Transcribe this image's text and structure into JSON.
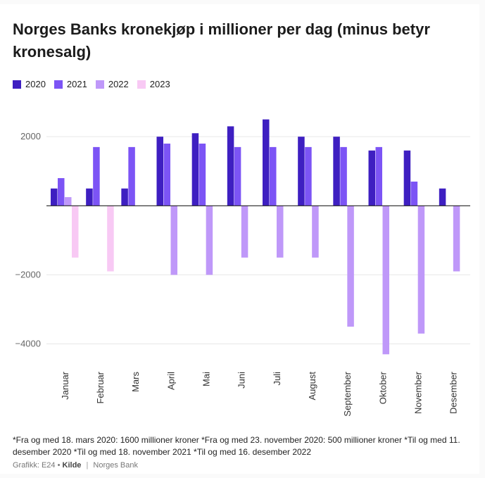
{
  "chart_data": {
    "type": "bar",
    "title": "Norges Banks kronekjøp i millioner per dag (minus betyr kronesalg)",
    "categories": [
      "Januar",
      "Februar",
      "Mars",
      "April",
      "Mai",
      "Juni",
      "Juli",
      "August",
      "September",
      "Oktober",
      "November",
      "Desember"
    ],
    "series": [
      {
        "name": "2020",
        "color": "#3e1fc1",
        "values": [
          500,
          500,
          500,
          2000,
          2100,
          2300,
          2500,
          2000,
          2000,
          1600,
          1600,
          500
        ]
      },
      {
        "name": "2021",
        "color": "#7c54f5",
        "values": [
          800,
          1700,
          1700,
          1800,
          1800,
          1700,
          1700,
          1700,
          1700,
          1700,
          700,
          null
        ]
      },
      {
        "name": "2022",
        "color": "#bf98f9",
        "values": [
          250,
          null,
          null,
          -2000,
          -2000,
          -1500,
          -1500,
          -1500,
          -3500,
          -4300,
          -3700,
          -1900
        ]
      },
      {
        "name": "2023",
        "color": "#f8c9f4",
        "values": [
          -1500,
          -1900,
          null,
          null,
          null,
          null,
          null,
          null,
          null,
          null,
          null,
          null
        ]
      }
    ],
    "yticks": [
      2000,
      0,
      -2000,
      -4000
    ],
    "ytick_labels": [
      "2000",
      "",
      "−2000",
      "−4000"
    ],
    "ylim": [
      -4600,
      2900
    ],
    "xlabel": "",
    "ylabel": "",
    "grid": true,
    "legend_position": "top-left"
  },
  "footnote": "*Fra og med 18. mars 2020: 1600 millioner kroner *Fra og med 23. november 2020: 500 millioner kroner *Til og med 11. desember 2020 *Til og med 18. november 2021 *Til og med 16. desember 2022",
  "source": {
    "credit": "Grafikk: E24",
    "bullet": "•",
    "label": "Kilde",
    "separator": "|",
    "name": "Norges Bank"
  }
}
